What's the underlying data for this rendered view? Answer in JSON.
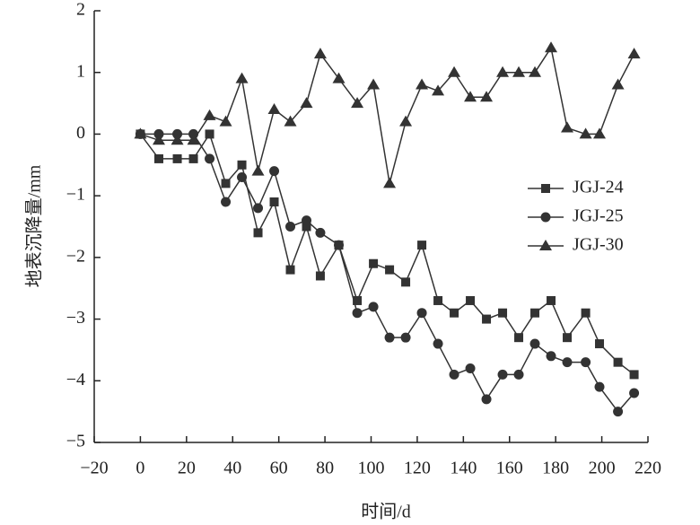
{
  "chart_data": {
    "type": "line",
    "x_label": "时间/d",
    "y_label": "地表沉降量/mm",
    "x": [
      0,
      8,
      16,
      23,
      30,
      37,
      44,
      51,
      58,
      65,
      72,
      78,
      86,
      94,
      101,
      108,
      115,
      122,
      129,
      136,
      143,
      150,
      157,
      164,
      171,
      178,
      185,
      193,
      199,
      207,
      214
    ],
    "series": [
      {
        "name": "JGJ-24",
        "color": "#333333",
        "marker": "square",
        "values": [
          0,
          -0.4,
          -0.4,
          -0.4,
          0.0,
          -0.8,
          -0.5,
          -1.6,
          -1.1,
          -2.2,
          -1.5,
          -2.3,
          -1.8,
          -2.7,
          -2.1,
          -2.2,
          -2.4,
          -1.8,
          -2.7,
          -2.9,
          -2.7,
          -3.0,
          -2.9,
          -3.3,
          -2.9,
          -2.7,
          -3.3,
          -2.9,
          -3.4,
          -3.7,
          -3.9
        ]
      },
      {
        "name": "JGJ-25",
        "color": "#333333",
        "marker": "circle",
        "values": [
          0,
          0,
          0,
          0,
          -0.4,
          -1.1,
          -0.7,
          -1.2,
          -0.6,
          -1.5,
          -1.4,
          -1.6,
          -1.8,
          -2.9,
          -2.8,
          -3.3,
          -3.3,
          -2.9,
          -3.4,
          -3.9,
          -3.8,
          -4.3,
          -3.9,
          -3.9,
          -3.4,
          -3.6,
          -3.7,
          -3.7,
          -4.1,
          -4.5,
          -4.2
        ]
      },
      {
        "name": "JGJ-30",
        "color": "#333333",
        "marker": "triangle",
        "values": [
          0,
          -0.1,
          -0.1,
          -0.1,
          0.3,
          0.2,
          0.9,
          -0.6,
          0.4,
          0.2,
          0.5,
          1.3,
          0.9,
          0.5,
          0.8,
          -0.8,
          0.2,
          0.8,
          0.7,
          1.0,
          0.6,
          0.6,
          1.0,
          1.0,
          1.0,
          1.4,
          0.1,
          0.0,
          0.0,
          0.8,
          1.3
        ]
      }
    ],
    "xlim": [
      -20,
      220
    ],
    "xticks": [
      {
        "value": -20,
        "label": "−20"
      },
      0,
      20,
      40,
      60,
      80,
      100,
      120,
      140,
      160,
      180,
      200,
      220
    ],
    "ylim": [
      -5,
      2
    ],
    "yticks": [
      {
        "value": -5,
        "label": "−5"
      },
      {
        "value": -4,
        "label": "−4"
      },
      {
        "value": -3,
        "label": "−3"
      },
      {
        "value": -2,
        "label": "−2"
      },
      {
        "value": -1,
        "label": "−1"
      },
      0,
      1,
      2
    ],
    "legend": "right",
    "grid": false
  }
}
